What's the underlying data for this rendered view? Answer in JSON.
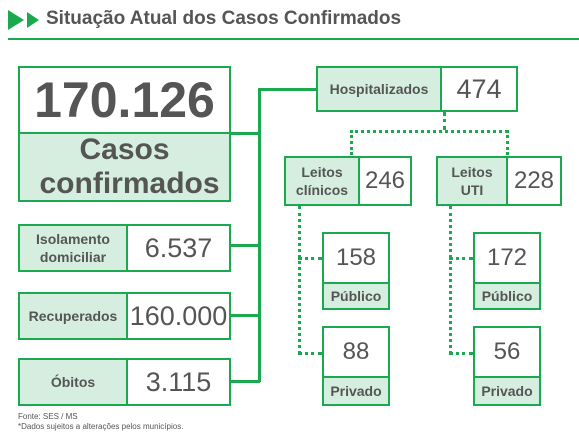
{
  "header": {
    "title": "Situação Atual dos Casos Confirmados"
  },
  "confirmed": {
    "value": "170.126",
    "label": "Casos confirmados"
  },
  "isolation": {
    "label": "Isolamento domiciliar",
    "value": "6.537"
  },
  "recovered": {
    "label": "Recuperados",
    "value": "160.000"
  },
  "deaths": {
    "label": "Óbitos",
    "value": "3.115"
  },
  "hospitalized": {
    "label": "Hospitalizados",
    "value": "474"
  },
  "clinical_beds": {
    "label": "Leitos clínicos",
    "value": "246",
    "public": {
      "value": "158",
      "label": "Público"
    },
    "private": {
      "value": "88",
      "label": "Privado"
    }
  },
  "icu_beds": {
    "label": "Leitos UTI",
    "value": "228",
    "public": {
      "value": "172",
      "label": "Público"
    },
    "private": {
      "value": "56",
      "label": "Privado"
    }
  },
  "footer": {
    "source": "Fonte: SES / MS",
    "note": "*Dados sujeitos a alterações pelos municípios."
  },
  "colors": {
    "accent": "#1aa94e",
    "label_fill": "#d5eee0",
    "text": "#555555"
  }
}
